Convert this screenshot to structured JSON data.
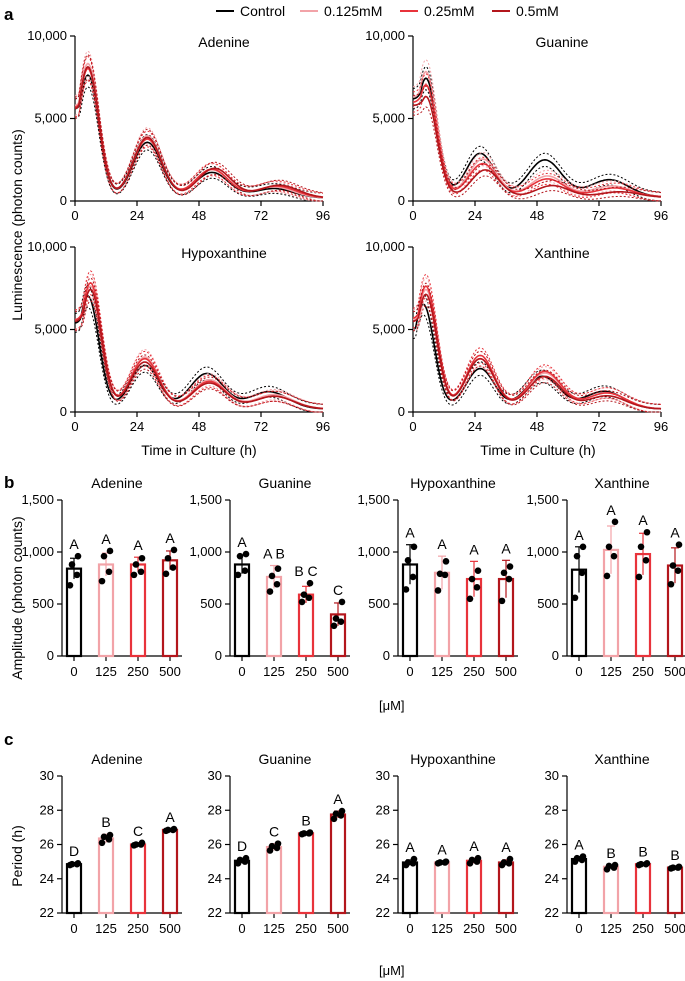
{
  "figure": {
    "panels": [
      "a",
      "b",
      "c"
    ],
    "legend": [
      {
        "label": "Control",
        "color": "#000000"
      },
      {
        "label": "0.125mM",
        "color": "#f2a3a8"
      },
      {
        "label": "0.25mM",
        "color": "#e8333b"
      },
      {
        "label": "0.5mM",
        "color": "#b3161c"
      }
    ],
    "shared_ylabel_a": "Luminescence (photon counts)",
    "xlabel_a": "Time in Culture (h)",
    "ylabel_b": "Amplitude (photon counts)",
    "ylabel_c": "Period (h)",
    "unit_label": "[μM]"
  },
  "colors": {
    "control": "#000000",
    "c125": "#f2a3a8",
    "c250": "#e8333b",
    "c500": "#b3161c"
  },
  "chart_data": [
    {
      "type": "line",
      "panel": "a",
      "title": "Adenine",
      "x_ticks": [
        0,
        24,
        48,
        72,
        96
      ],
      "y_ticks": [
        "0",
        "5,000",
        "10,000"
      ],
      "xlim": [
        0,
        96
      ],
      "ylim": [
        0,
        10000
      ],
      "series": [
        {
          "name": "Control",
          "peaks": [
            [
              5,
              7600
            ],
            [
              28,
              3600
            ],
            [
              53,
              1750
            ],
            [
              77,
              800
            ]
          ],
          "baseline": 5600,
          "troughs": [
            300,
            450,
            400,
            450
          ]
        },
        {
          "name": "0.125mM",
          "peaks": [
            [
              5,
              8300
            ],
            [
              28,
              4000
            ],
            [
              53,
              1900
            ],
            [
              77,
              900
            ]
          ],
          "baseline": 5800,
          "troughs": [
            300,
            450,
            400,
            450
          ]
        },
        {
          "name": "0.25mM",
          "peaks": [
            [
              5,
              8000
            ],
            [
              28,
              3800
            ],
            [
              53,
              1950
            ],
            [
              78,
              950
            ]
          ],
          "baseline": 5700,
          "troughs": [
            300,
            450,
            400,
            450
          ]
        },
        {
          "name": "0.5mM",
          "peaks": [
            [
              5,
              8100
            ],
            [
              28,
              3900
            ],
            [
              54,
              2000
            ],
            [
              79,
              1000
            ]
          ],
          "baseline": 5600,
          "troughs": [
            300,
            450,
            400,
            450
          ]
        }
      ]
    },
    {
      "type": "line",
      "panel": "a",
      "title": "Guanine",
      "x_ticks": [
        0,
        24,
        48,
        72,
        96
      ],
      "y_ticks": [
        "0",
        "5,000",
        "10,000"
      ],
      "xlim": [
        0,
        96
      ],
      "ylim": [
        0,
        10000
      ],
      "series": [
        {
          "name": "Control",
          "peaks": [
            [
              5,
              7400
            ],
            [
              26,
              3000
            ],
            [
              51,
              2500
            ],
            [
              76,
              1300
            ]
          ],
          "baseline": 6200,
          "troughs": [
            400,
            700,
            500,
            500
          ]
        },
        {
          "name": "0.125mM",
          "peaks": [
            [
              5,
              7800
            ],
            [
              27,
              2600
            ],
            [
              52,
              1500
            ],
            [
              77,
              900
            ]
          ],
          "baseline": 6300,
          "troughs": [
            400,
            600,
            450,
            450
          ]
        },
        {
          "name": "0.25mM",
          "peaks": [
            [
              5,
              7000
            ],
            [
              27,
              2300
            ],
            [
              52,
              1300
            ],
            [
              78,
              750
            ]
          ],
          "baseline": 6000,
          "troughs": [
            400,
            550,
            400,
            400
          ]
        },
        {
          "name": "0.5mM",
          "peaks": [
            [
              5,
              6300
            ],
            [
              28,
              1900
            ],
            [
              54,
              900
            ],
            [
              80,
              500
            ]
          ],
          "baseline": 5800,
          "troughs": [
            350,
            450,
            350,
            300
          ]
        }
      ]
    },
    {
      "type": "line",
      "panel": "a",
      "title": "Hypoxanthine",
      "x_ticks": [
        0,
        24,
        48,
        72,
        96
      ],
      "y_ticks": [
        "0",
        "5,000",
        "10,000"
      ],
      "xlim": [
        0,
        96
      ],
      "ylim": [
        0,
        10000
      ],
      "series": [
        {
          "name": "Control",
          "peaks": [
            [
              5,
              7000
            ],
            [
              27,
              2900
            ],
            [
              51,
              2400
            ],
            [
              75,
              1300
            ]
          ],
          "baseline": 5400,
          "troughs": [
            300,
            500,
            500,
            500
          ]
        },
        {
          "name": "0.125mM",
          "peaks": [
            [
              6,
              7600
            ],
            [
              27,
              3400
            ],
            [
              52,
              2000
            ],
            [
              77,
              1100
            ]
          ],
          "baseline": 5600,
          "troughs": [
            300,
            500,
            450,
            450
          ]
        },
        {
          "name": "0.25mM",
          "peaks": [
            [
              6,
              7800
            ],
            [
              27,
              3300
            ],
            [
              52,
              1900
            ],
            [
              77,
              1000
            ]
          ],
          "baseline": 5600,
          "troughs": [
            300,
            500,
            450,
            450
          ]
        },
        {
          "name": "0.5mM",
          "peaks": [
            [
              6,
              7400
            ],
            [
              27,
              3100
            ],
            [
              52,
              1800
            ],
            [
              77,
              1000
            ]
          ],
          "baseline": 5500,
          "troughs": [
            300,
            500,
            450,
            450
          ]
        }
      ]
    },
    {
      "type": "line",
      "panel": "a",
      "title": "Xanthine",
      "x_ticks": [
        0,
        24,
        48,
        72,
        96
      ],
      "y_ticks": [
        "0",
        "5,000",
        "10,000"
      ],
      "xlim": [
        0,
        96
      ],
      "ylim": [
        0,
        10000
      ],
      "series": [
        {
          "name": "Control",
          "peaks": [
            [
              4,
              6500
            ],
            [
              26,
              2700
            ],
            [
              50,
              2200
            ],
            [
              74,
              1300
            ]
          ],
          "baseline": 5000,
          "troughs": [
            300,
            500,
            450,
            450
          ]
        },
        {
          "name": "0.125mM",
          "peaks": [
            [
              5,
              7400
            ],
            [
              26,
              3300
            ],
            [
              51,
              2400
            ],
            [
              75,
              1200
            ]
          ],
          "baseline": 5600,
          "troughs": [
            300,
            500,
            450,
            450
          ]
        },
        {
          "name": "0.25mM",
          "peaks": [
            [
              5,
              7600
            ],
            [
              26,
              3500
            ],
            [
              51,
              2500
            ],
            [
              75,
              1200
            ]
          ],
          "baseline": 5700,
          "troughs": [
            300,
            500,
            450,
            450
          ]
        },
        {
          "name": "0.5mM",
          "peaks": [
            [
              5,
              7100
            ],
            [
              26,
              3300
            ],
            [
              51,
              2200
            ],
            [
              75,
              1000
            ]
          ],
          "baseline": 5500,
          "troughs": [
            300,
            500,
            450,
            400
          ]
        }
      ]
    },
    {
      "type": "bar",
      "panel": "b",
      "title": "Adenine",
      "categories": [
        "0",
        "125",
        "250",
        "500"
      ],
      "y_ticks": [
        "0",
        "500",
        "1,000",
        "1,500"
      ],
      "ylim": [
        0,
        1500
      ],
      "values": [
        840,
        880,
        880,
        920
      ],
      "err": [
        100,
        110,
        70,
        90
      ],
      "points": [
        [
          680,
          780,
          880,
          960
        ],
        [
          720,
          810,
          960,
          1010
        ],
        [
          780,
          810,
          880,
          940
        ],
        [
          790,
          850,
          940,
          1020
        ]
      ],
      "letters": [
        "A",
        "A",
        "A",
        "A"
      ]
    },
    {
      "type": "bar",
      "panel": "b",
      "title": "Guanine",
      "categories": [
        "0",
        "125",
        "250",
        "500"
      ],
      "y_ticks": [
        "0",
        "500",
        "1,000",
        "1,500"
      ],
      "ylim": [
        0,
        1500
      ],
      "values": [
        880,
        760,
        590,
        400
      ],
      "err": [
        90,
        110,
        80,
        110
      ],
      "points": [
        [
          780,
          820,
          960,
          980
        ],
        [
          620,
          690,
          770,
          840
        ],
        [
          520,
          560,
          590,
          700
        ],
        [
          290,
          330,
          360,
          520
        ]
      ],
      "letters": [
        "A",
        "A B",
        "B C",
        "C"
      ]
    },
    {
      "type": "bar",
      "panel": "b",
      "title": "Hypoxanthine",
      "categories": [
        "0",
        "125",
        "250",
        "500"
      ],
      "y_ticks": [
        "0",
        "500",
        "1,000",
        "1,500"
      ],
      "ylim": [
        0,
        1500
      ],
      "values": [
        880,
        800,
        740,
        740
      ],
      "err": [
        190,
        160,
        170,
        180
      ],
      "points": [
        [
          640,
          760,
          920,
          1050
        ],
        [
          630,
          780,
          790,
          910
        ],
        [
          550,
          660,
          740,
          820
        ],
        [
          530,
          740,
          800,
          860
        ]
      ],
      "letters": [
        "A",
        "A",
        "A",
        "A"
      ]
    },
    {
      "type": "bar",
      "panel": "b",
      "title": "Xanthine",
      "categories": [
        "0",
        "125",
        "250",
        "500"
      ],
      "y_ticks": [
        "0",
        "500",
        "1,000",
        "1,500"
      ],
      "ylim": [
        0,
        1500
      ],
      "values": [
        830,
        1020,
        980,
        870
      ],
      "err": [
        220,
        230,
        200,
        170
      ],
      "points": [
        [
          560,
          800,
          960,
          1050
        ],
        [
          770,
          960,
          1050,
          1290
        ],
        [
          760,
          920,
          1050,
          1190
        ],
        [
          690,
          820,
          870,
          1070
        ]
      ],
      "letters": [
        "A",
        "A",
        "A",
        "A"
      ]
    },
    {
      "type": "bar",
      "panel": "c",
      "title": "Adenine",
      "categories": [
        "0",
        "125",
        "250",
        "500"
      ],
      "y_ticks": [
        "22",
        "24",
        "26",
        "28",
        "30"
      ],
      "ylim": [
        22,
        30
      ],
      "values": [
        24.85,
        26.35,
        26.0,
        26.85
      ],
      "err": [
        0.08,
        0.25,
        0.1,
        0.06
      ],
      "points": [
        [
          24.8,
          24.85,
          24.85,
          24.9
        ],
        [
          26.1,
          26.3,
          26.45,
          26.55
        ],
        [
          25.95,
          26.0,
          26.0,
          26.1
        ],
        [
          26.8,
          26.85,
          26.85,
          26.9
        ]
      ],
      "letters": [
        "D",
        "B",
        "C",
        "A"
      ]
    },
    {
      "type": "bar",
      "panel": "c",
      "title": "Guanine",
      "categories": [
        "0",
        "125",
        "250",
        "500"
      ],
      "y_ticks": [
        "22",
        "24",
        "26",
        "28",
        "30"
      ],
      "ylim": [
        22,
        30
      ],
      "values": [
        25.05,
        25.85,
        26.65,
        27.75
      ],
      "err": [
        0.15,
        0.2,
        0.05,
        0.2
      ],
      "points": [
        [
          24.9,
          25.0,
          25.1,
          25.2
        ],
        [
          25.65,
          25.8,
          25.9,
          26.05
        ],
        [
          26.6,
          26.65,
          26.65,
          26.7
        ],
        [
          27.5,
          27.7,
          27.8,
          27.95
        ]
      ],
      "letters": [
        "D",
        "C",
        "B",
        "A"
      ]
    },
    {
      "type": "bar",
      "panel": "c",
      "title": "Hypoxanthine",
      "categories": [
        "0",
        "125",
        "250",
        "500"
      ],
      "y_ticks": [
        "22",
        "24",
        "26",
        "28",
        "30"
      ],
      "ylim": [
        22,
        30
      ],
      "values": [
        24.95,
        24.95,
        25.05,
        24.95
      ],
      "err": [
        0.15,
        0.05,
        0.15,
        0.15
      ],
      "points": [
        [
          24.8,
          24.9,
          24.95,
          25.15
        ],
        [
          24.9,
          24.95,
          24.95,
          25.0
        ],
        [
          24.9,
          25.0,
          25.1,
          25.2
        ],
        [
          24.8,
          24.9,
          24.95,
          25.15
        ]
      ],
      "letters": [
        "A",
        "A",
        "A",
        "A"
      ]
    },
    {
      "type": "bar",
      "panel": "c",
      "title": "Xanthine",
      "categories": [
        "0",
        "125",
        "250",
        "500"
      ],
      "y_ticks": [
        "22",
        "24",
        "26",
        "28",
        "30"
      ],
      "ylim": [
        22,
        30
      ],
      "values": [
        25.15,
        24.7,
        24.85,
        24.65
      ],
      "err": [
        0.15,
        0.1,
        0.05,
        0.05
      ],
      "points": [
        [
          25.0,
          25.1,
          25.2,
          25.3
        ],
        [
          24.55,
          24.65,
          24.75,
          24.8
        ],
        [
          24.8,
          24.85,
          24.85,
          24.9
        ],
        [
          24.6,
          24.65,
          24.65,
          24.7
        ]
      ],
      "letters": [
        "A",
        "B",
        "B",
        "B"
      ]
    }
  ]
}
